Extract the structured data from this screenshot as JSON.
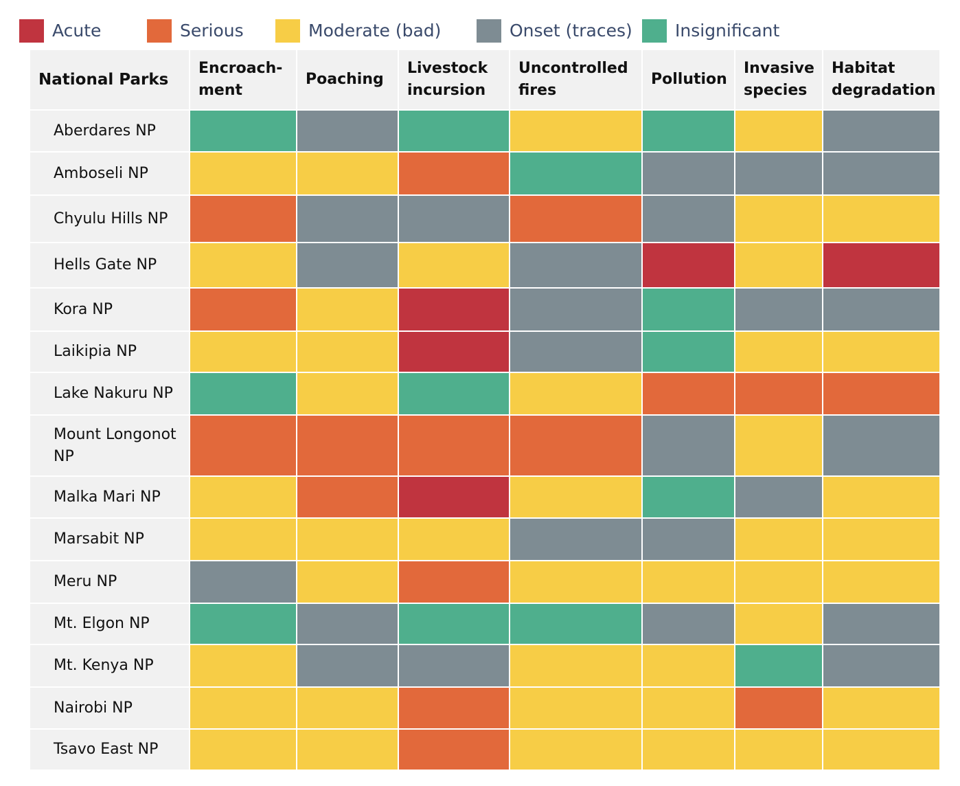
{
  "legend": [
    {
      "key": "acute",
      "label": "Acute",
      "color": "#c0343f"
    },
    {
      "key": "serious",
      "label": "Serious",
      "color": "#e2693b"
    },
    {
      "key": "moderate",
      "label": "Moderate (bad)",
      "color": "#f7cd46"
    },
    {
      "key": "onset",
      "label": "Onset (traces)",
      "color": "#7e8c93"
    },
    {
      "key": "insignificant",
      "label": "Insignificant",
      "color": "#4faf8d"
    }
  ],
  "chart_data": {
    "type": "heatmap",
    "title": "",
    "row_header": "National Parks",
    "columns": [
      "Encroach-\nment",
      "Poaching",
      "Livestock\nincursion",
      "Uncontrolled\nfires",
      "Pollution",
      "Invasive\nspecies",
      "Habitat\ndegradation"
    ],
    "rows": [
      "Aberdares NP",
      "Amboseli NP",
      "Chyulu Hills NP",
      "Hells Gate NP",
      "Kora NP",
      "Laikipia NP",
      "Lake Nakuru NP",
      "Mount Longonot\nNP",
      "Malka Mari NP",
      "Marsabit NP",
      "Meru NP",
      "Mt. Elgon NP",
      "Mt. Kenya NP",
      "Nairobi NP",
      "Tsavo East NP"
    ],
    "levels": [
      "acute",
      "serious",
      "moderate",
      "onset",
      "insignificant"
    ],
    "values": [
      [
        "insignificant",
        "onset",
        "insignificant",
        "moderate",
        "insignificant",
        "moderate",
        "onset"
      ],
      [
        "moderate",
        "moderate",
        "serious",
        "insignificant",
        "onset",
        "onset",
        "onset"
      ],
      [
        "serious",
        "onset",
        "onset",
        "serious",
        "onset",
        "moderate",
        "moderate"
      ],
      [
        "moderate",
        "onset",
        "moderate",
        "onset",
        "acute",
        "moderate",
        "acute"
      ],
      [
        "serious",
        "moderate",
        "acute",
        "onset",
        "insignificant",
        "onset",
        "onset"
      ],
      [
        "moderate",
        "moderate",
        "acute",
        "onset",
        "insignificant",
        "moderate",
        "moderate"
      ],
      [
        "insignificant",
        "moderate",
        "insignificant",
        "moderate",
        "serious",
        "serious",
        "serious"
      ],
      [
        "serious",
        "serious",
        "serious",
        "serious",
        "onset",
        "moderate",
        "onset"
      ],
      [
        "moderate",
        "serious",
        "acute",
        "moderate",
        "insignificant",
        "onset",
        "moderate"
      ],
      [
        "moderate",
        "moderate",
        "moderate",
        "onset",
        "onset",
        "moderate",
        "moderate"
      ],
      [
        "onset",
        "moderate",
        "serious",
        "moderate",
        "moderate",
        "moderate",
        "moderate"
      ],
      [
        "insignificant",
        "onset",
        "insignificant",
        "insignificant",
        "onset",
        "moderate",
        "onset"
      ],
      [
        "moderate",
        "onset",
        "onset",
        "moderate",
        "moderate",
        "insignificant",
        "onset"
      ],
      [
        "moderate",
        "moderate",
        "serious",
        "moderate",
        "moderate",
        "serious",
        "moderate"
      ],
      [
        "moderate",
        "moderate",
        "serious",
        "moderate",
        "moderate",
        "moderate",
        "moderate"
      ]
    ]
  }
}
